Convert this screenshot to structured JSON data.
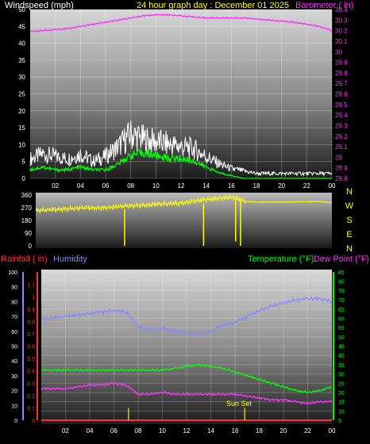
{
  "colors": {
    "background": "#000000",
    "wind_label": "#ffffff",
    "title": "#ffff00",
    "barometer": "#ff33ff",
    "direction": "#ffff00",
    "rainfall": "#ff3333",
    "humidity": "#8888ff",
    "temperature": "#00ff00",
    "dewpoint": "#ff33ff",
    "axis_tick": "#ffffff"
  },
  "header": {
    "wind_label": "Windspeed (mph)",
    "title": "24 hour graph day : December 01 2025",
    "barometer_label": "Barometer ( in)"
  },
  "direction_letters": [
    "N",
    "W",
    "S",
    "E",
    "N"
  ],
  "lower_labels": {
    "rainfall": "Rainfall ( in)",
    "humidity": "Humidity",
    "temperature": "Temperature (°F)",
    "dewpoint": "Dew Point (°F)",
    "sunset": "Sun Set"
  },
  "chart_data": [
    {
      "type": "line",
      "title": "24 hour graph day : December 01 2025",
      "x_ticks": [
        "02",
        "04",
        "06",
        "08",
        "10",
        "12",
        "14",
        "16",
        "18",
        "20",
        "22",
        "00"
      ],
      "xlim": [
        0,
        24
      ],
      "grid": true,
      "left_axis": {
        "label": "Windspeed (mph)",
        "range": [
          0,
          50
        ],
        "ticks": [
          0,
          5,
          10,
          15,
          20,
          25,
          30,
          35,
          40,
          45,
          50
        ]
      },
      "right_axis": {
        "label": "Barometer ( in)",
        "range": [
          28.8,
          30.4
        ],
        "ticks": [
          "28.8",
          "28.9",
          "29",
          "29.1",
          "29.2",
          "29.3",
          "29.4",
          "29.5",
          "29.6",
          "29.7",
          "29.8",
          "29.9",
          "30",
          "30.1",
          "30.2",
          "30.3",
          "30.4"
        ]
      },
      "series": [
        {
          "name": "Barometer",
          "axis": "right",
          "x": [
            0,
            1,
            2,
            3,
            4,
            5,
            6,
            7,
            8,
            9,
            10,
            11,
            12,
            13,
            14,
            15,
            16,
            17,
            18,
            19,
            20,
            21,
            22,
            23,
            24
          ],
          "values": [
            30.19,
            30.2,
            30.21,
            30.22,
            30.24,
            30.26,
            30.28,
            30.3,
            30.32,
            30.34,
            30.35,
            30.35,
            30.34,
            30.33,
            30.32,
            30.32,
            30.32,
            30.32,
            30.31,
            30.3,
            30.29,
            30.28,
            30.26,
            30.24,
            30.2
          ]
        },
        {
          "name": "Gust",
          "axis": "left",
          "x": [
            0,
            1,
            2,
            3,
            4,
            5,
            6,
            7,
            8,
            9,
            10,
            11,
            12,
            13,
            14,
            15,
            16,
            17,
            18,
            19,
            20,
            21,
            22,
            23,
            24
          ],
          "values": [
            8,
            10,
            9,
            8,
            10,
            7,
            9,
            13,
            18,
            16,
            15,
            14,
            13,
            12,
            9,
            6,
            4,
            3,
            2,
            2,
            2,
            2,
            2,
            2,
            2
          ]
        },
        {
          "name": "Average",
          "axis": "left",
          "x": [
            0,
            1,
            2,
            3,
            4,
            5,
            6,
            7,
            8,
            9,
            10,
            11,
            12,
            13,
            14,
            15,
            16,
            17,
            18,
            19,
            20,
            21,
            22,
            23,
            24
          ],
          "values": [
            3,
            4,
            3,
            3,
            4,
            3,
            3,
            5,
            8,
            9,
            8,
            7,
            7,
            6,
            4,
            2,
            1,
            0,
            0,
            0,
            0,
            0,
            0,
            0,
            0
          ]
        }
      ]
    },
    {
      "type": "line",
      "xlim": [
        0,
        24
      ],
      "left_axis": {
        "range": [
          0,
          360
        ],
        "ticks": [
          0,
          90,
          180,
          270,
          360
        ]
      },
      "series": [
        {
          "name": "Wind direction",
          "x": [
            0,
            1,
            2,
            3,
            4,
            5,
            6,
            7,
            8,
            9,
            10,
            11,
            12,
            13,
            14,
            15,
            16,
            17,
            18,
            19,
            20,
            21,
            22,
            23,
            24
          ],
          "values": [
            250,
            255,
            260,
            265,
            270,
            268,
            272,
            280,
            285,
            290,
            295,
            300,
            305,
            320,
            330,
            340,
            345,
            315,
            310,
            310,
            310,
            312,
            312,
            315,
            305
          ]
        }
      ],
      "spikes": [
        {
          "x": 7.2,
          "values": [
            260,
            0
          ]
        },
        {
          "x": 13.6,
          "values": [
            300,
            0
          ]
        },
        {
          "x": 16.2,
          "values": [
            330,
            30
          ]
        },
        {
          "x": 16.6,
          "values": [
            330,
            0
          ]
        }
      ]
    },
    {
      "type": "line",
      "x_ticks": [
        "02",
        "04",
        "06",
        "08",
        "10",
        "12",
        "14",
        "16",
        "18",
        "20",
        "22",
        "00"
      ],
      "xlim": [
        0,
        24
      ],
      "grid": true,
      "axes": {
        "rainfall": {
          "label": "Rainfall ( in)",
          "range": [
            0,
            1.2
          ],
          "ticks": [
            "0",
            "0.1",
            "0.2",
            "0.3",
            "0.4",
            "0.5",
            "0.6",
            "0.7",
            "0.8",
            "0.9",
            "1",
            "1.1"
          ]
        },
        "humidity": {
          "label": "Humidity",
          "range": [
            0,
            100
          ],
          "ticks": [
            0,
            10,
            20,
            30,
            40,
            50,
            60,
            70,
            80,
            90,
            100
          ]
        },
        "temperature": {
          "label": "Temperature (°F)",
          "range": [
            5,
            85
          ],
          "ticks": [
            5,
            10,
            15,
            20,
            25,
            30,
            35,
            40,
            45,
            50,
            55,
            60,
            65,
            70,
            75,
            80,
            85
          ]
        }
      },
      "series": [
        {
          "name": "Humidity",
          "axis": "humidity",
          "x": [
            0,
            1,
            2,
            3,
            4,
            5,
            6,
            7,
            8,
            9,
            10,
            11,
            12,
            13,
            14,
            15,
            16,
            17,
            18,
            19,
            20,
            21,
            22,
            23,
            24
          ],
          "values": [
            68,
            69,
            70,
            71,
            72,
            73,
            74,
            73,
            63,
            61,
            62,
            60,
            59,
            58,
            60,
            64,
            66,
            70,
            74,
            77,
            79,
            81,
            82,
            82,
            80
          ]
        },
        {
          "name": "Temperature",
          "axis": "temperature",
          "x": [
            0,
            1,
            2,
            3,
            4,
            5,
            6,
            7,
            8,
            9,
            10,
            11,
            12,
            13,
            14,
            15,
            16,
            17,
            18,
            19,
            20,
            21,
            22,
            23,
            24
          ],
          "values": [
            32,
            32,
            32,
            32,
            32,
            32,
            32,
            32,
            32,
            32,
            32,
            33,
            34,
            35,
            34,
            33,
            31,
            29,
            27,
            25,
            23,
            21,
            20,
            21,
            23
          ]
        },
        {
          "name": "Dew Point",
          "axis": "temperature",
          "x": [
            0,
            1,
            2,
            3,
            4,
            5,
            6,
            7,
            8,
            9,
            10,
            11,
            12,
            13,
            14,
            15,
            16,
            17,
            18,
            19,
            20,
            21,
            22,
            23,
            24
          ],
          "values": [
            22,
            22,
            22,
            23,
            24,
            24,
            25,
            24,
            19,
            19,
            20,
            19,
            19,
            19,
            19,
            19,
            19,
            18,
            17,
            16,
            16,
            15,
            14,
            15,
            15
          ]
        },
        {
          "name": "Rainfall",
          "axis": "rainfall",
          "x": [
            0,
            24
          ],
          "values": [
            0,
            0
          ]
        }
      ],
      "markers": [
        {
          "x": 7.2,
          "value": 0.1
        },
        {
          "x": 16.8,
          "value": 0.1,
          "label": "Sun Set"
        }
      ]
    }
  ]
}
